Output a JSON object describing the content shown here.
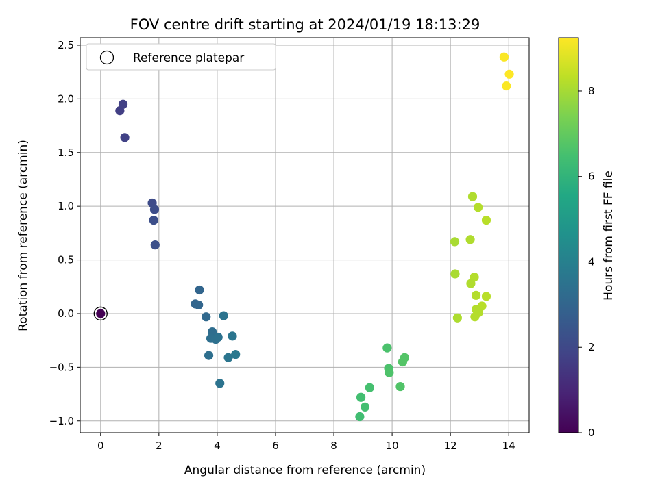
{
  "chart_data": {
    "type": "scatter",
    "title": "FOV centre drift starting at 2024/01/19 18:13:29",
    "xlabel": "Angular distance from reference (arcmin)",
    "ylabel": "Rotation from reference (arcmin)",
    "xlim": [
      -0.7,
      14.7
    ],
    "ylim": [
      -1.11,
      2.57
    ],
    "xticks": [
      0,
      2,
      4,
      6,
      8,
      10,
      12,
      14
    ],
    "xtick_labels": [
      "0",
      "2",
      "4",
      "6",
      "8",
      "10",
      "12",
      "14"
    ],
    "yticks": [
      -1.0,
      -0.5,
      0.0,
      0.5,
      1.0,
      1.5,
      2.0,
      2.5
    ],
    "ytick_labels": [
      "−1.0",
      "−0.5",
      "0.0",
      "0.5",
      "1.0",
      "1.5",
      "2.0",
      "2.5"
    ],
    "grid": true,
    "legend": {
      "location": "upper-left",
      "entries": [
        "Reference platepar"
      ]
    },
    "colorbar": {
      "label": "Hours from first FF file",
      "range": [
        0,
        9.25
      ],
      "ticks": [
        0,
        2,
        4,
        6,
        8
      ],
      "tick_labels": [
        "0",
        "2",
        "4",
        "6",
        "8"
      ],
      "colormap": "viridis"
    },
    "reference": {
      "x": 0,
      "y": 0,
      "hours": 0
    },
    "points": [
      {
        "x": 0.0,
        "y": 0.0,
        "hours": 0.0
      },
      {
        "x": 0.66,
        "y": 1.89,
        "hours": 1.7
      },
      {
        "x": 0.77,
        "y": 1.95,
        "hours": 1.75
      },
      {
        "x": 0.83,
        "y": 1.64,
        "hours": 1.8
      },
      {
        "x": 1.77,
        "y": 1.03,
        "hours": 2.1
      },
      {
        "x": 1.85,
        "y": 0.97,
        "hours": 2.15
      },
      {
        "x": 1.82,
        "y": 0.87,
        "hours": 2.2
      },
      {
        "x": 1.87,
        "y": 0.64,
        "hours": 2.25
      },
      {
        "x": 3.39,
        "y": 0.22,
        "hours": 3.0
      },
      {
        "x": 3.25,
        "y": 0.09,
        "hours": 3.0
      },
      {
        "x": 3.36,
        "y": 0.08,
        "hours": 3.05
      },
      {
        "x": 3.62,
        "y": -0.03,
        "hours": 3.15
      },
      {
        "x": 3.83,
        "y": -0.17,
        "hours": 3.3
      },
      {
        "x": 3.78,
        "y": -0.23,
        "hours": 3.35
      },
      {
        "x": 3.95,
        "y": -0.24,
        "hours": 3.4
      },
      {
        "x": 4.03,
        "y": -0.22,
        "hours": 3.45
      },
      {
        "x": 3.71,
        "y": -0.39,
        "hours": 3.35
      },
      {
        "x": 4.22,
        "y": -0.02,
        "hours": 3.5
      },
      {
        "x": 4.52,
        "y": -0.21,
        "hours": 3.6
      },
      {
        "x": 4.38,
        "y": -0.41,
        "hours": 3.6
      },
      {
        "x": 4.63,
        "y": -0.38,
        "hours": 3.7
      },
      {
        "x": 4.09,
        "y": -0.65,
        "hours": 3.5
      },
      {
        "x": 9.83,
        "y": -0.32,
        "hours": 6.6
      },
      {
        "x": 9.88,
        "y": -0.51,
        "hours": 6.6
      },
      {
        "x": 9.9,
        "y": -0.55,
        "hours": 6.65
      },
      {
        "x": 10.43,
        "y": -0.41,
        "hours": 6.75
      },
      {
        "x": 10.36,
        "y": -0.45,
        "hours": 6.75
      },
      {
        "x": 9.23,
        "y": -0.69,
        "hours": 6.5
      },
      {
        "x": 10.28,
        "y": -0.68,
        "hours": 6.7
      },
      {
        "x": 8.93,
        "y": -0.78,
        "hours": 6.45
      },
      {
        "x": 9.07,
        "y": -0.87,
        "hours": 6.45
      },
      {
        "x": 8.89,
        "y": -0.96,
        "hours": 6.4
      },
      {
        "x": 12.15,
        "y": 0.67,
        "hours": 8.05
      },
      {
        "x": 12.16,
        "y": 0.37,
        "hours": 8.05
      },
      {
        "x": 12.24,
        "y": -0.04,
        "hours": 8.1
      },
      {
        "x": 12.76,
        "y": 1.09,
        "hours": 8.15
      },
      {
        "x": 12.95,
        "y": 0.99,
        "hours": 8.2
      },
      {
        "x": 13.23,
        "y": 0.87,
        "hours": 8.25
      },
      {
        "x": 12.68,
        "y": 0.69,
        "hours": 8.15
      },
      {
        "x": 12.82,
        "y": 0.34,
        "hours": 8.2
      },
      {
        "x": 12.7,
        "y": 0.28,
        "hours": 8.15
      },
      {
        "x": 12.88,
        "y": 0.17,
        "hours": 8.2
      },
      {
        "x": 13.23,
        "y": 0.16,
        "hours": 8.25
      },
      {
        "x": 13.08,
        "y": 0.07,
        "hours": 8.25
      },
      {
        "x": 12.88,
        "y": 0.04,
        "hours": 8.2
      },
      {
        "x": 12.97,
        "y": 0.01,
        "hours": 8.2
      },
      {
        "x": 12.84,
        "y": -0.03,
        "hours": 8.2
      },
      {
        "x": 13.84,
        "y": 2.39,
        "hours": 9.2
      },
      {
        "x": 14.02,
        "y": 2.23,
        "hours": 9.25
      },
      {
        "x": 13.92,
        "y": 2.12,
        "hours": 9.2
      }
    ]
  }
}
